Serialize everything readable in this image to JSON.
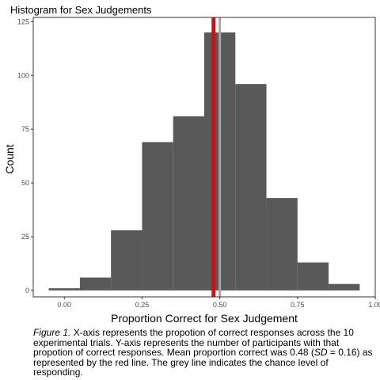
{
  "chart_data": {
    "type": "bar",
    "title": "Histogram for Sex Judgements",
    "xlabel": "Proportion Correct for Sex Judgement",
    "ylabel": "Count",
    "xlim": [
      -0.1,
      1.0
    ],
    "ylim": [
      -3,
      127
    ],
    "x_ticks": [
      0.0,
      0.25,
      0.5,
      0.75,
      1.0
    ],
    "x_tick_labels": [
      "0.00",
      "0.25",
      "0.50",
      "0.75",
      "1.00"
    ],
    "y_ticks": [
      0,
      25,
      50,
      75,
      100,
      125
    ],
    "y_tick_labels": [
      "0",
      "25",
      "50",
      "75",
      "100",
      "125"
    ],
    "bins": [
      {
        "x0": -0.05,
        "x1": 0.05,
        "count": 1
      },
      {
        "x0": 0.05,
        "x1": 0.15,
        "count": 6
      },
      {
        "x0": 0.15,
        "x1": 0.25,
        "count": 28
      },
      {
        "x0": 0.25,
        "x1": 0.35,
        "count": 69
      },
      {
        "x0": 0.35,
        "x1": 0.45,
        "count": 81
      },
      {
        "x0": 0.45,
        "x1": 0.55,
        "count": 120
      },
      {
        "x0": 0.55,
        "x1": 0.65,
        "count": 96
      },
      {
        "x0": 0.65,
        "x1": 0.75,
        "count": 43
      },
      {
        "x0": 0.75,
        "x1": 0.85,
        "count": 13
      },
      {
        "x0": 0.85,
        "x1": 0.95,
        "count": 3
      }
    ],
    "mean_line": {
      "x": 0.48
    },
    "chance_line": {
      "x": 0.5
    },
    "grid": false,
    "colors": {
      "bars": "#595959",
      "mean_line": "#cc1111",
      "chance_line": "#a6a6a6",
      "axis": "#333333"
    }
  },
  "caption": {
    "label": "Figure 1.",
    "text_1": " X-axis represents the propotion of correct responses across the 10 experimental trials. Y-axis represents the number of participants with that propotion of correct responses. Mean proportion correct was 0.48 (",
    "sd_label": "SD",
    "text_2": " = 0.16) as represented by the red line. The grey line indicates the chance level of responding."
  }
}
